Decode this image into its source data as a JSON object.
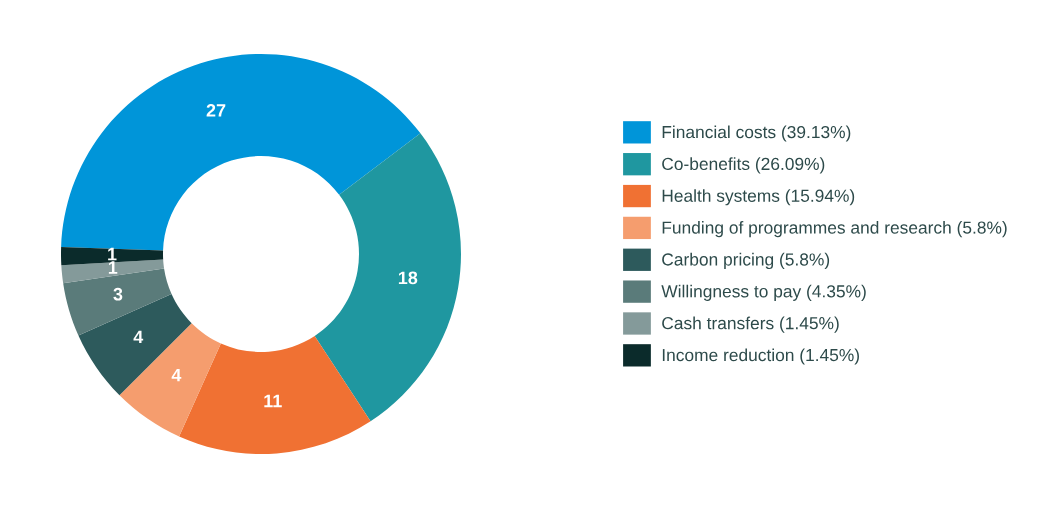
{
  "chart_data": {
    "type": "donut",
    "categories": [
      "Financial costs (39.13%)",
      "Co-benefits (26.09%)",
      "Health systems (15.94%)",
      "Funding of programmes and research (5.8%)",
      "Carbon pricing (5.8%)",
      "Willingness to pay (4.35%)",
      "Cash transfers (1.45%)",
      "Income reduction (1.45%)"
    ],
    "values": [
      27,
      18,
      11,
      4,
      4,
      3,
      1,
      1
    ],
    "colors": [
      "#0095d9",
      "#1f97a0",
      "#f07133",
      "#f59d6e",
      "#2d5a5c",
      "#5a7b7a",
      "#849a9a",
      "#0b2b2b"
    ],
    "data_labels": true,
    "legend": "right"
  }
}
